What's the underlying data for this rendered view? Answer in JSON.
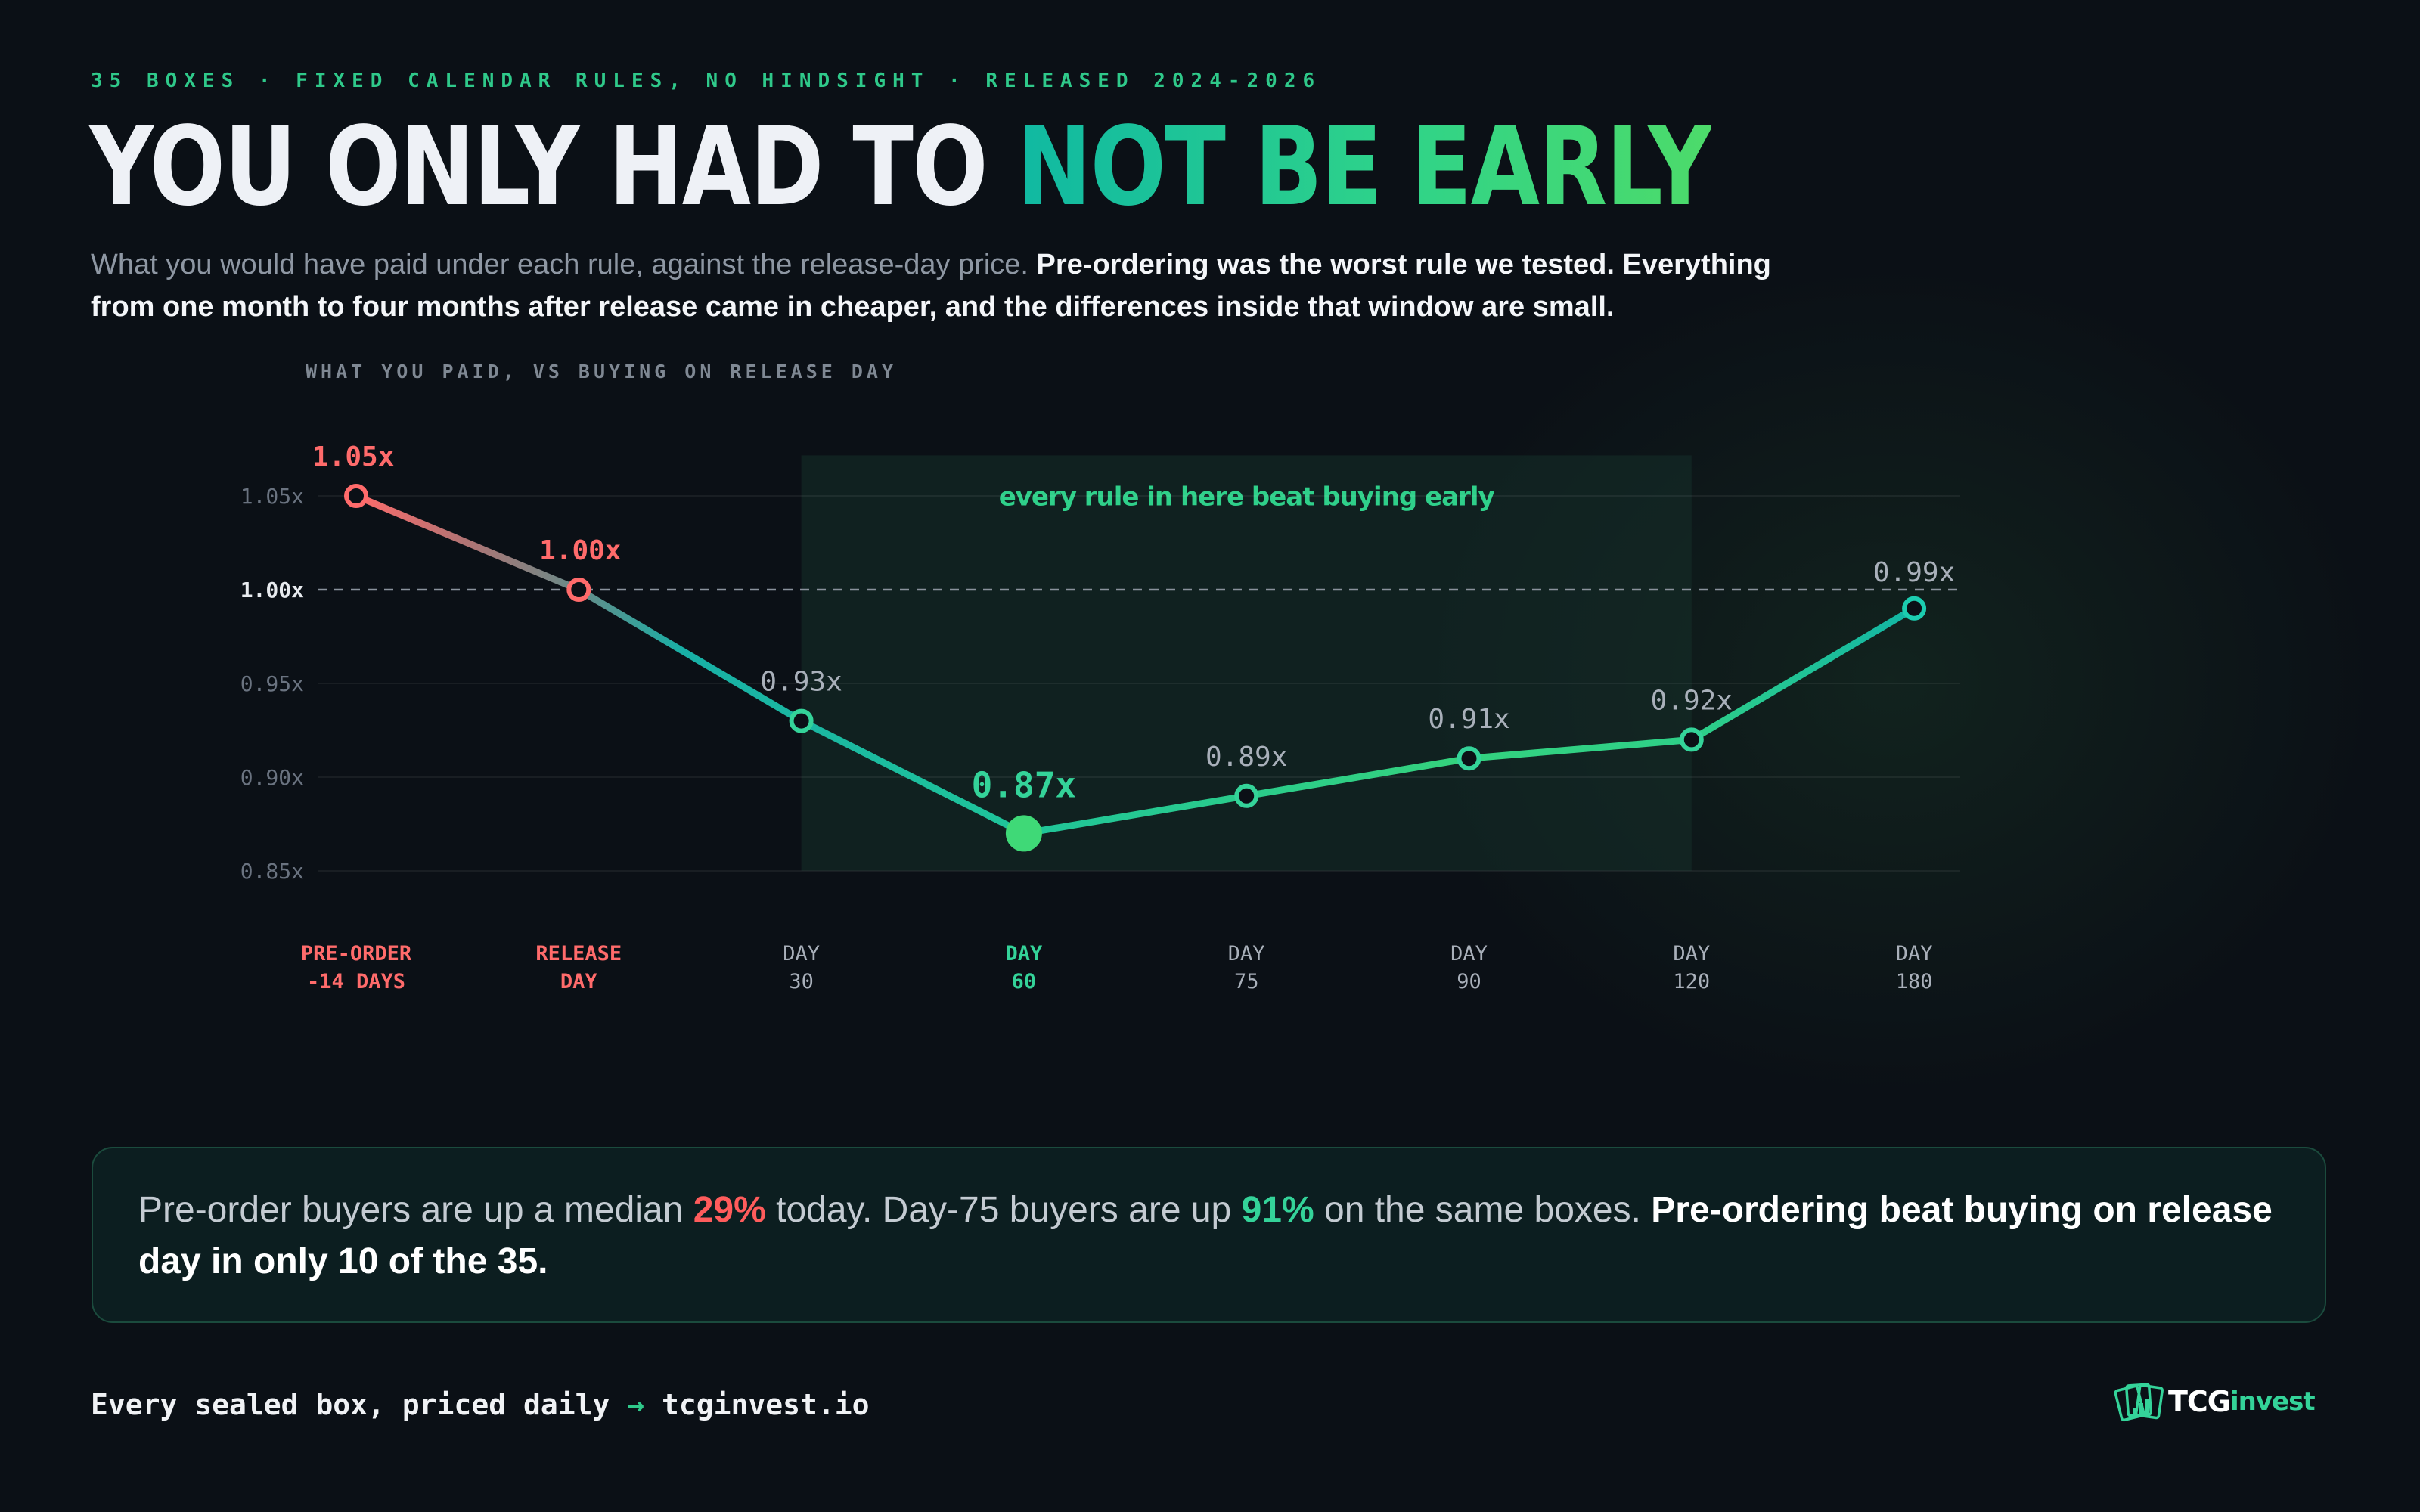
{
  "header": {
    "eyebrow": "35 BOXES · FIXED CALENDAR RULES, NO HINDSIGHT · RELEASED 2024-2026",
    "title_part1": "YOU ONLY HAD TO ",
    "title_part2": "NOT BE EARLY",
    "lede_plain": "What you would have paid under each rule, against the release-day price. ",
    "lede_bold": "Pre-ordering was the worst rule we tested. Everything from one month to four months after release came in cheaper, and the differences inside that window are small."
  },
  "chart_data": {
    "type": "line",
    "title": "WHAT YOU PAID, VS BUYING ON RELEASE DAY",
    "categories": [
      [
        "PRE-ORDER",
        "-14 DAYS"
      ],
      [
        "RELEASE",
        "DAY"
      ],
      [
        "DAY",
        "30"
      ],
      [
        "DAY",
        "60"
      ],
      [
        "DAY",
        "75"
      ],
      [
        "DAY",
        "90"
      ],
      [
        "DAY",
        "120"
      ],
      [
        "DAY",
        "180"
      ]
    ],
    "values": [
      1.05,
      1.0,
      0.93,
      0.87,
      0.89,
      0.91,
      0.92,
      0.99
    ],
    "value_labels": [
      "1.05x",
      "1.00x",
      "0.93x",
      "0.87x",
      "0.89x",
      "0.91x",
      "0.92x",
      "0.99x"
    ],
    "y_ticks": [
      1.05,
      1.0,
      0.95,
      0.9,
      0.85
    ],
    "y_tick_labels": [
      "1.05x",
      "1.00x",
      "0.95x",
      "0.90x",
      "0.85x"
    ],
    "ylim": [
      0.84,
      1.08
    ],
    "baseline": 1.0,
    "highlight_window_label": "every rule in here beat buying early",
    "highlight_window_categories": [
      "DAY 30",
      "DAY 120"
    ],
    "best_category": "DAY 60",
    "grid": true,
    "colors": {
      "bad": "#ff6b6b",
      "good": "#34d399",
      "teal": "#12b5a5",
      "neutral_label": "#a9b0ba",
      "tick": "#6a7380"
    }
  },
  "callout": {
    "part1": "Pre-order buyers are up a median ",
    "pct_pre": "29%",
    "part2": " today. Day-75 buyers are up ",
    "pct_day75": "91%",
    "part3": " on the same boxes. ",
    "bold": "Pre-ordering beat buying on release day in only 10 of the 35."
  },
  "footer": {
    "text": "Every sealed box, priced daily",
    "arrow": "→",
    "url": "tcginvest.io"
  },
  "brand": {
    "name_a": "TCG",
    "name_b": "invest",
    "icon": "cards-chart-logo-icon"
  }
}
